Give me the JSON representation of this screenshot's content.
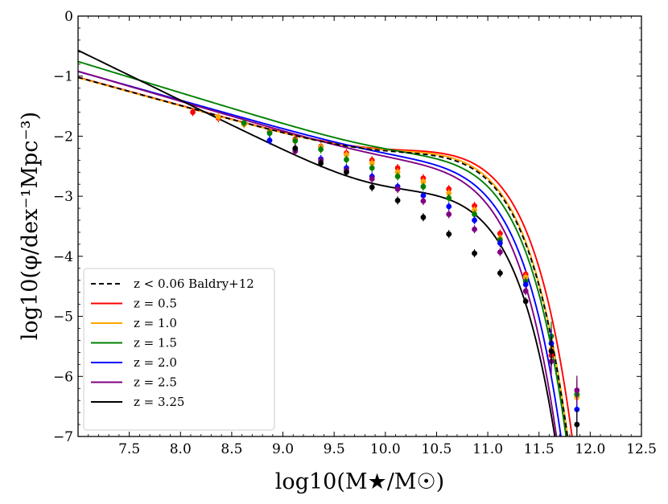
{
  "chart_data": {
    "type": "line",
    "title": "",
    "xlabel": "log10(M★/M☉)",
    "ylabel": "log10(φ/dex⁻¹Mpc⁻³)",
    "xlim": [
      7.0,
      12.5
    ],
    "ylim": [
      -7,
      0
    ],
    "xticks": [
      7.5,
      8.0,
      8.5,
      9.0,
      9.5,
      10.0,
      10.5,
      11.0,
      11.5,
      12.0,
      12.5
    ],
    "yticks": [
      0,
      -1,
      -2,
      -3,
      -4,
      -5,
      -6,
      -7
    ],
    "xtick_labels": [
      "7.5",
      "8.0",
      "8.5",
      "9.0",
      "9.5",
      "10.0",
      "10.5",
      "11.0",
      "11.5",
      "12.0",
      "12.5"
    ],
    "ytick_labels": [
      "0",
      "−1",
      "−2",
      "−3",
      "−4",
      "−5",
      "−6",
      "−7"
    ],
    "legend_position": "bottom-left",
    "series": [
      {
        "name": "z < 0.06 Baldry+12",
        "color": "#000000",
        "dashed": true,
        "fit": {
          "mstar": 10.66,
          "phi1": 0.00396,
          "alpha1": -0.35,
          "phi2": 0.00079,
          "alpha2": -1.47
        },
        "points": []
      },
      {
        "name": "z = 0.5",
        "color": "#ff0000",
        "dashed": false,
        "fit": {
          "mstar": 10.7,
          "phi1": 0.0046,
          "alpha1": -0.35,
          "phi2": 0.00076,
          "alpha2": -1.47
        },
        "points": [
          [
            8.12,
            -1.6
          ],
          [
            8.37,
            -1.7
          ],
          [
            8.62,
            -1.8
          ],
          [
            8.87,
            -1.93
          ],
          [
            9.12,
            -2.05
          ],
          [
            9.37,
            -2.17
          ],
          [
            9.62,
            -2.28
          ],
          [
            9.87,
            -2.4
          ],
          [
            10.12,
            -2.53
          ],
          [
            10.37,
            -2.7
          ],
          [
            10.62,
            -2.88
          ],
          [
            10.87,
            -3.16
          ],
          [
            11.12,
            -3.62
          ],
          [
            11.37,
            -4.3
          ],
          [
            11.62,
            -5.65
          ],
          [
            11.87,
            -6.3
          ]
        ]
      },
      {
        "name": "z = 1.0",
        "color": "#ffa500",
        "dashed": false,
        "fit": {
          "mstar": 10.66,
          "phi1": 0.0043,
          "alpha1": -0.35,
          "phi2": 0.00078,
          "alpha2": -1.47
        },
        "points": [
          [
            8.37,
            -1.68
          ],
          [
            8.62,
            -1.8
          ],
          [
            8.87,
            -1.94
          ],
          [
            9.12,
            -2.07
          ],
          [
            9.37,
            -2.18
          ],
          [
            9.62,
            -2.31
          ],
          [
            9.87,
            -2.45
          ],
          [
            10.12,
            -2.6
          ],
          [
            10.37,
            -2.76
          ],
          [
            10.62,
            -2.95
          ],
          [
            10.87,
            -3.23
          ],
          [
            11.12,
            -3.7
          ],
          [
            11.37,
            -4.35
          ],
          [
            11.62,
            -5.55
          ],
          [
            11.87,
            -6.35
          ]
        ]
      },
      {
        "name": "z = 1.5",
        "color": "#008000",
        "dashed": false,
        "fit": {
          "mstar": 10.66,
          "phi1": 0.0031,
          "alpha1": -0.4,
          "phi2": 0.00095,
          "alpha2": -1.52
        },
        "points": [
          [
            8.62,
            -1.78
          ],
          [
            8.87,
            -1.95
          ],
          [
            9.12,
            -2.08
          ],
          [
            9.37,
            -2.22
          ],
          [
            9.62,
            -2.39
          ],
          [
            9.87,
            -2.53
          ],
          [
            10.12,
            -2.67
          ],
          [
            10.37,
            -2.84
          ],
          [
            10.62,
            -3.03
          ],
          [
            10.87,
            -3.3
          ],
          [
            11.12,
            -3.73
          ],
          [
            11.37,
            -4.42
          ],
          [
            11.62,
            -5.33
          ],
          [
            11.87,
            -6.3
          ]
        ]
      },
      {
        "name": "z = 2.0",
        "color": "#0000ff",
        "dashed": false,
        "fit": {
          "mstar": 10.62,
          "phi1": 0.0023,
          "alpha1": -0.4,
          "phi2": 0.00095,
          "alpha2": -1.48
        },
        "points": [
          [
            8.87,
            -2.07
          ],
          [
            9.12,
            -2.23
          ],
          [
            9.37,
            -2.38
          ],
          [
            9.62,
            -2.53
          ],
          [
            9.87,
            -2.67
          ],
          [
            10.12,
            -2.84
          ],
          [
            10.37,
            -2.99
          ],
          [
            10.62,
            -3.17
          ],
          [
            10.87,
            -3.4
          ],
          [
            11.12,
            -3.78
          ],
          [
            11.37,
            -4.47
          ],
          [
            11.62,
            -5.45
          ],
          [
            11.87,
            -6.55
          ]
        ]
      },
      {
        "name": "z = 2.5",
        "color": "#800080",
        "dashed": false,
        "fit": {
          "mstar": 10.58,
          "phi1": 0.0021,
          "alpha1": -0.4,
          "phi2": 0.00085,
          "alpha2": -1.5
        },
        "points": [
          [
            9.12,
            -2.25
          ],
          [
            9.37,
            -2.41
          ],
          [
            9.62,
            -2.57
          ],
          [
            9.87,
            -2.71
          ],
          [
            10.12,
            -2.88
          ],
          [
            10.37,
            -3.08
          ],
          [
            10.62,
            -3.3
          ],
          [
            10.87,
            -3.55
          ],
          [
            11.12,
            -3.93
          ],
          [
            11.37,
            -4.58
          ],
          [
            11.62,
            -5.75
          ],
          [
            11.87,
            -6.23
          ]
        ]
      },
      {
        "name": "z = 3.25",
        "color": "#000000",
        "dashed": false,
        "fit": {
          "mstar": 10.6,
          "phi1": 0.00095,
          "alpha1": -0.45,
          "phi2": 0.00012,
          "alpha2": -1.83
        },
        "points": [
          [
            9.12,
            -2.2
          ],
          [
            9.37,
            -2.45
          ],
          [
            9.62,
            -2.6
          ],
          [
            9.87,
            -2.85
          ],
          [
            10.12,
            -3.07
          ],
          [
            10.37,
            -3.35
          ],
          [
            10.62,
            -3.63
          ],
          [
            10.87,
            -3.95
          ],
          [
            11.12,
            -4.28
          ],
          [
            11.37,
            -4.75
          ],
          [
            11.62,
            -5.58
          ],
          [
            11.87,
            -6.8
          ]
        ]
      }
    ]
  }
}
